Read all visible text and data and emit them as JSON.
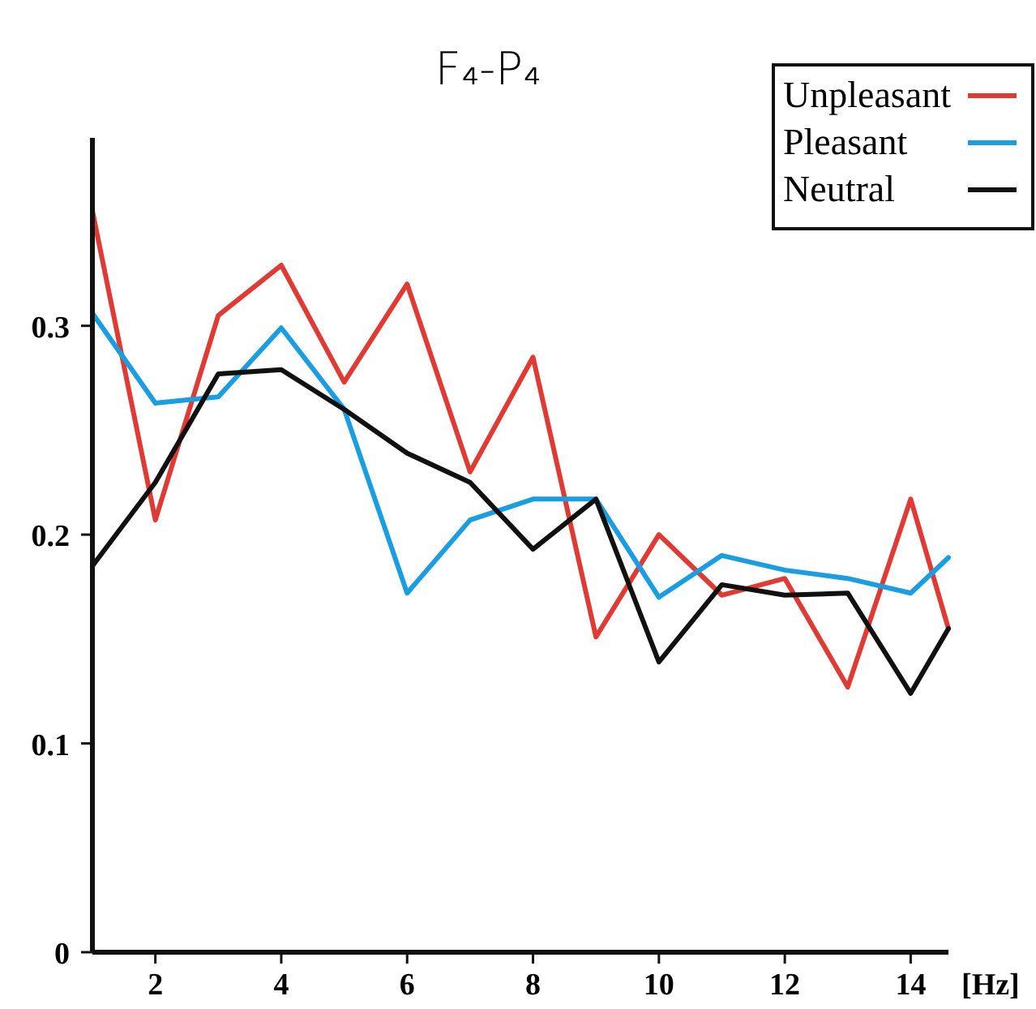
{
  "chart_data": {
    "type": "line",
    "title": "F₄-P₄",
    "xlabel": "[Hz]",
    "x": [
      1,
      2,
      3,
      4,
      5,
      6,
      7,
      8,
      9,
      10,
      11,
      12,
      13,
      14,
      14.6
    ],
    "xlim": [
      1,
      14.6
    ],
    "xticks": [
      2,
      4,
      6,
      8,
      10,
      12,
      14
    ],
    "ylim": [
      0,
      0.39
    ],
    "yticks": [
      0,
      0.1,
      0.2,
      0.3
    ],
    "grid": false,
    "legend": "top right",
    "marker": "none",
    "line_style": "solid",
    "series": [
      {
        "name": "Unpleasant",
        "color": "#e03a35",
        "values": [
          0.355,
          0.207,
          0.305,
          0.329,
          0.273,
          0.32,
          0.23,
          0.285,
          0.151,
          0.2,
          0.171,
          0.179,
          0.127,
          0.217,
          0.155
        ]
      },
      {
        "name": "Pleasant",
        "color": "#1a9ee0",
        "values": [
          0.306,
          0.263,
          0.266,
          0.299,
          0.26,
          0.172,
          0.207,
          0.217,
          0.217,
          0.17,
          0.19,
          0.183,
          0.179,
          0.172,
          0.189
        ]
      },
      {
        "name": "Neutral",
        "color": "#111111",
        "values": [
          0.185,
          0.225,
          0.277,
          0.279,
          0.26,
          0.239,
          0.225,
          0.193,
          0.217,
          0.139,
          0.176,
          0.171,
          0.172,
          0.124,
          0.155
        ]
      }
    ]
  }
}
